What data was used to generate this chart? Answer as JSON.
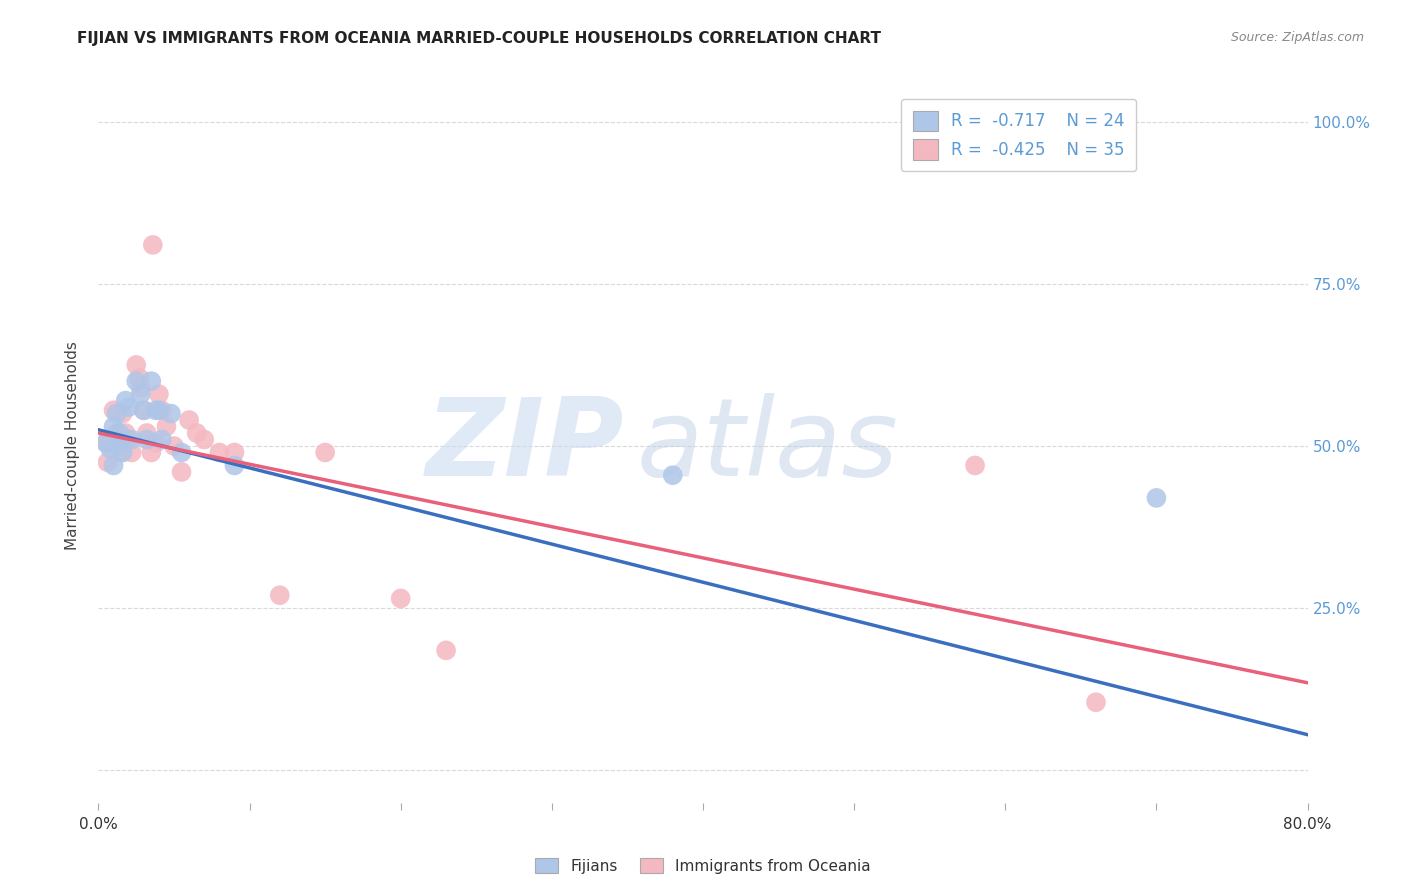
{
  "title": "FIJIAN VS IMMIGRANTS FROM OCEANIA MARRIED-COUPLE HOUSEHOLDS CORRELATION CHART",
  "source": "Source: ZipAtlas.com",
  "ylabel": "Married-couple Households",
  "ytick_labels": [
    "",
    "25.0%",
    "50.0%",
    "75.0%",
    "100.0%"
  ],
  "ytick_values": [
    0,
    0.25,
    0.5,
    0.75,
    1.0
  ],
  "xlim": [
    0.0,
    0.8
  ],
  "ylim": [
    -0.05,
    1.05
  ],
  "fijian_color": "#aec6e8",
  "oceania_color": "#f4b8c1",
  "fijian_line_color": "#3a6fbf",
  "oceania_line_color": "#e8607a",
  "legend_fijian_R": "-0.717",
  "legend_fijian_N": "24",
  "legend_oceania_R": "-0.425",
  "legend_oceania_N": "35",
  "fijian_x": [
    0.005,
    0.008,
    0.01,
    0.01,
    0.012,
    0.014,
    0.015,
    0.016,
    0.018,
    0.02,
    0.022,
    0.025,
    0.028,
    0.03,
    0.032,
    0.035,
    0.038,
    0.04,
    0.042,
    0.048,
    0.055,
    0.09,
    0.38,
    0.7
  ],
  "fijian_y": [
    0.505,
    0.495,
    0.53,
    0.47,
    0.55,
    0.52,
    0.505,
    0.49,
    0.57,
    0.56,
    0.51,
    0.6,
    0.58,
    0.555,
    0.51,
    0.6,
    0.555,
    0.555,
    0.51,
    0.55,
    0.49,
    0.47,
    0.455,
    0.42
  ],
  "oceania_x": [
    0.005,
    0.006,
    0.008,
    0.01,
    0.012,
    0.013,
    0.015,
    0.016,
    0.018,
    0.02,
    0.022,
    0.025,
    0.027,
    0.028,
    0.03,
    0.032,
    0.035,
    0.036,
    0.038,
    0.04,
    0.042,
    0.045,
    0.05,
    0.055,
    0.06,
    0.065,
    0.07,
    0.08,
    0.09,
    0.12,
    0.15,
    0.2,
    0.23,
    0.58,
    0.66
  ],
  "oceania_y": [
    0.505,
    0.475,
    0.505,
    0.555,
    0.52,
    0.505,
    0.49,
    0.55,
    0.52,
    0.51,
    0.49,
    0.625,
    0.605,
    0.59,
    0.555,
    0.52,
    0.49,
    0.81,
    0.505,
    0.58,
    0.555,
    0.53,
    0.5,
    0.46,
    0.54,
    0.52,
    0.51,
    0.49,
    0.49,
    0.27,
    0.49,
    0.265,
    0.185,
    0.47,
    0.105
  ],
  "fijian_line_x0": 0.0,
  "fijian_line_x1": 0.8,
  "fijian_line_y0": 0.525,
  "fijian_line_y1": 0.055,
  "oceania_line_x0": 0.0,
  "oceania_line_x1": 0.8,
  "oceania_line_y0": 0.52,
  "oceania_line_y1": 0.135,
  "background_color": "#ffffff",
  "grid_color": "#d0d0d0",
  "watermark_zip": "ZIP",
  "watermark_atlas": "atlas",
  "right_yaxis_color": "#5b9bd5"
}
